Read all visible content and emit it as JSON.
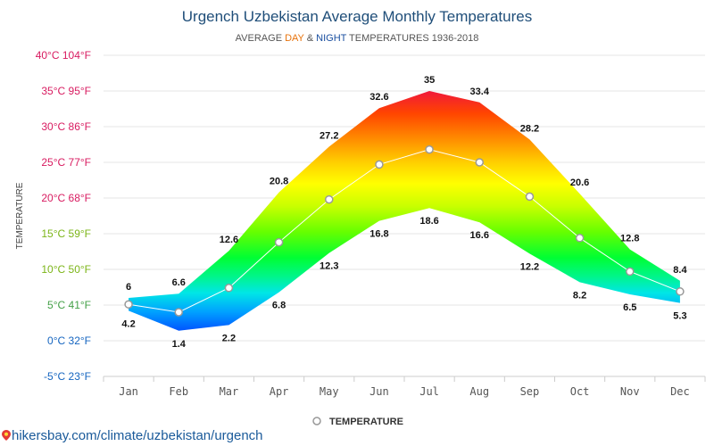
{
  "chart_data": {
    "type": "area",
    "title": "Urgench Uzbekistan Average Monthly Temperatures",
    "subtitle": {
      "prefix": "AVERAGE ",
      "day": "DAY",
      "amp": " & ",
      "night": "NIGHT",
      "suffix": " TEMPERATURES 1936-2018",
      "day_color": "#e8730c",
      "night_color": "#1a4fa0"
    },
    "ylabel": "TEMPERATURE",
    "ylim": [
      -5,
      40
    ],
    "yticks": [
      {
        "value": 40,
        "label": "40°C 104°F",
        "color": "#d81b60"
      },
      {
        "value": 35,
        "label": "35°C 95°F",
        "color": "#d81b60"
      },
      {
        "value": 30,
        "label": "30°C 86°F",
        "color": "#d81b60"
      },
      {
        "value": 25,
        "label": "25°C 77°F",
        "color": "#d81b60"
      },
      {
        "value": 20,
        "label": "20°C 68°F",
        "color": "#d81b60"
      },
      {
        "value": 15,
        "label": "15°C 59°F",
        "color": "#7cb518"
      },
      {
        "value": 10,
        "label": "10°C 50°F",
        "color": "#7cb518"
      },
      {
        "value": 5,
        "label": "5°C 41°F",
        "color": "#43a047"
      },
      {
        "value": 0,
        "label": "0°C 32°F",
        "color": "#1565c0"
      },
      {
        "value": -5,
        "label": "-5°C 23°F",
        "color": "#1565c0"
      }
    ],
    "categories": [
      "Jan",
      "Feb",
      "Mar",
      "Apr",
      "May",
      "Jun",
      "Jul",
      "Aug",
      "Sep",
      "Oct",
      "Nov",
      "Dec"
    ],
    "series": [
      {
        "name": "Day",
        "values": [
          6,
          6.6,
          12.6,
          20.8,
          27.2,
          32.6,
          35,
          33.4,
          28.2,
          20.6,
          12.8,
          8.4
        ]
      },
      {
        "name": "Night",
        "values": [
          4.2,
          1.4,
          2.2,
          6.8,
          12.3,
          16.8,
          18.6,
          16.6,
          12.2,
          8.2,
          6.5,
          5.3
        ]
      },
      {
        "name": "TEMPERATURE",
        "values": [
          5.1,
          4.0,
          7.4,
          13.8,
          19.8,
          24.7,
          26.8,
          25.0,
          20.2,
          14.4,
          9.7,
          6.9
        ]
      }
    ],
    "legend": {
      "label": "TEMPERATURE",
      "position": "bottom-center"
    },
    "grid": true
  },
  "source": {
    "text": "hikersbay.com/climate/uzbekistan/urgench"
  },
  "colors": {
    "title": "#1f4e79",
    "grid": "#e6e6e6",
    "axis": "#cccccc",
    "line": "#ffffff",
    "marker_stroke": "#999999"
  }
}
